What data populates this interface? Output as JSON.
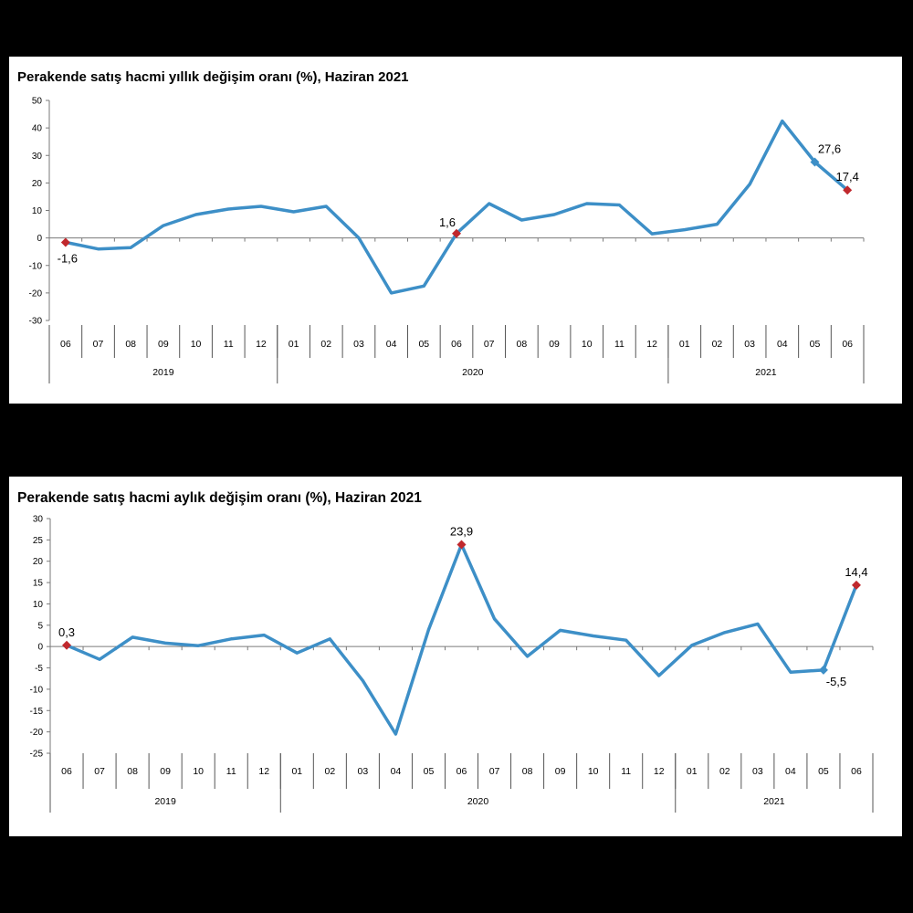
{
  "chart_data": [
    {
      "type": "line",
      "title": "Perakende satış hacmi yıllık değişim oranı (%), Haziran 2021",
      "xlabel": "",
      "ylabel": "",
      "ylim": [
        -30,
        50
      ],
      "yticks": [
        50,
        40,
        30,
        20,
        10,
        0,
        -10,
        -20,
        -30
      ],
      "categories": [
        "06",
        "07",
        "08",
        "09",
        "10",
        "11",
        "12",
        "01",
        "02",
        "03",
        "04",
        "05",
        "06",
        "07",
        "08",
        "09",
        "10",
        "11",
        "12",
        "01",
        "02",
        "03",
        "04",
        "05",
        "06"
      ],
      "years": [
        {
          "label": "2019",
          "start": 0,
          "end": 6
        },
        {
          "label": "2020",
          "start": 7,
          "end": 18
        },
        {
          "label": "2021",
          "start": 19,
          "end": 24
        }
      ],
      "series": [
        {
          "name": "Yıllık değişim",
          "color": "#3d8fc7",
          "values": [
            -1.6,
            -4.0,
            -3.5,
            4.5,
            8.5,
            10.5,
            11.5,
            9.5,
            11.5,
            0.0,
            -20.0,
            -17.5,
            1.6,
            12.5,
            6.5,
            8.5,
            12.5,
            12.0,
            1.5,
            3.0,
            5.0,
            19.5,
            42.5,
            27.6,
            17.4
          ]
        }
      ],
      "markers": [
        {
          "index": 0,
          "color": "#c0282d",
          "label": "-1,6",
          "pos": "below"
        },
        {
          "index": 12,
          "color": "#c0282d",
          "label": "1,6",
          "pos": "above-left"
        },
        {
          "index": 23,
          "color": "#3d8fc7",
          "label": "27,6",
          "pos": "above-right"
        },
        {
          "index": 24,
          "color": "#c0282d",
          "label": "17,4",
          "pos": "above"
        }
      ]
    },
    {
      "type": "line",
      "title": "Perakende satış hacmi aylık değişim oranı (%), Haziran 2021",
      "xlabel": "",
      "ylabel": "",
      "ylim": [
        -25,
        30
      ],
      "yticks": [
        30,
        25,
        20,
        15,
        10,
        5,
        0,
        -5,
        -10,
        -15,
        -20,
        -25
      ],
      "categories": [
        "06",
        "07",
        "08",
        "09",
        "10",
        "11",
        "12",
        "01",
        "02",
        "03",
        "04",
        "05",
        "06",
        "07",
        "08",
        "09",
        "10",
        "11",
        "12",
        "01",
        "02",
        "03",
        "04",
        "05",
        "06"
      ],
      "years": [
        {
          "label": "2019",
          "start": 0,
          "end": 6
        },
        {
          "label": "2020",
          "start": 7,
          "end": 18
        },
        {
          "label": "2021",
          "start": 19,
          "end": 24
        }
      ],
      "series": [
        {
          "name": "Aylık değişim",
          "color": "#3d8fc7",
          "values": [
            0.3,
            -3.0,
            2.2,
            0.8,
            0.2,
            1.8,
            2.7,
            -1.5,
            1.8,
            -8.0,
            -20.5,
            4.0,
            23.9,
            6.5,
            -2.3,
            3.8,
            2.5,
            1.5,
            -6.8,
            0.3,
            3.3,
            5.3,
            -6.0,
            -5.5,
            14.4
          ]
        }
      ],
      "markers": [
        {
          "index": 0,
          "color": "#c0282d",
          "label": "0,3",
          "pos": "above"
        },
        {
          "index": 12,
          "color": "#c0282d",
          "label": "23,9",
          "pos": "above"
        },
        {
          "index": 23,
          "color": "#3d8fc7",
          "label": "-5,5",
          "pos": "below-right"
        },
        {
          "index": 24,
          "color": "#c0282d",
          "label": "14,4",
          "pos": "above"
        }
      ]
    }
  ]
}
